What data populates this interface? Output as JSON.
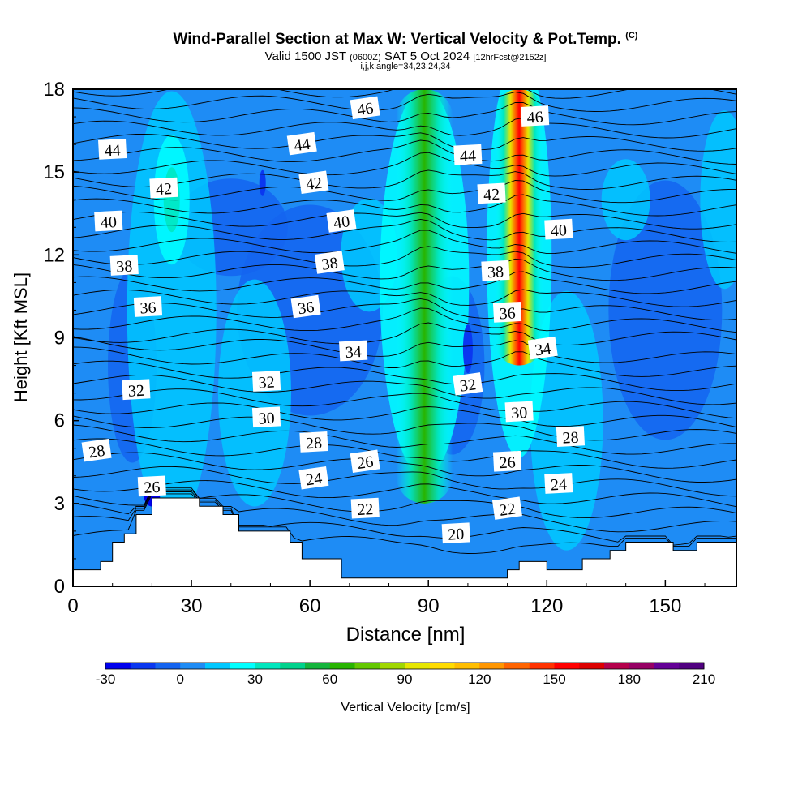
{
  "title": {
    "main": "Wind-Parallel Section at Max W: Vertical Velocity & Pot.Temp.",
    "suffix": "(C)"
  },
  "subtitle": {
    "valid": "Valid 1500 JST",
    "utc": "(0600Z)",
    "date": "SAT 5 Oct 2024",
    "fcst": "[12hrFcst@2152z]"
  },
  "subsubtitle": "i,j,k,angle=34,23,24,34",
  "colorbar": {
    "label": "Vertical Velocity [cm/s]",
    "ticks": [
      "-30",
      "0",
      "30",
      "60",
      "90",
      "120",
      "150",
      "180",
      "210"
    ],
    "colors": [
      "#0000ee",
      "#0a37f0",
      "#1464f0",
      "#1e8cf5",
      "#00c8ff",
      "#00ffff",
      "#00e6be",
      "#00d28c",
      "#14b43c",
      "#28b400",
      "#64c800",
      "#a0d700",
      "#e6e600",
      "#ffdc00",
      "#ffbe00",
      "#ff9600",
      "#ff6400",
      "#ff3200",
      "#ff0000",
      "#dc0000",
      "#b4004b",
      "#960064",
      "#640096",
      "#500080"
    ]
  },
  "chart_data": {
    "type": "heatmap",
    "xlabel": "Distance [nm]",
    "ylabel": "Height [Kft MSL]",
    "xlim": [
      0,
      168
    ],
    "ylim": [
      0,
      18
    ],
    "xticks": [
      "0",
      "30",
      "60",
      "90",
      "120",
      "150"
    ],
    "yticks": [
      "0",
      "3",
      "6",
      "9",
      "12",
      "15",
      "18"
    ],
    "updrafts": [
      {
        "x": 89,
        "y_from": 3,
        "y_to": 18,
        "peak_w": 75
      },
      {
        "x": 113,
        "y_from": 8,
        "y_to": 18,
        "peak_w": 170
      }
    ],
    "terrain": [
      [
        0,
        0.6
      ],
      [
        7,
        0.6
      ],
      [
        7,
        0.9
      ],
      [
        10,
        0.9
      ],
      [
        10,
        1.6
      ],
      [
        13,
        1.6
      ],
      [
        13,
        1.9
      ],
      [
        16,
        1.9
      ],
      [
        16,
        2.6
      ],
      [
        20,
        2.6
      ],
      [
        20,
        3.2
      ],
      [
        32,
        3.2
      ],
      [
        32,
        2.9
      ],
      [
        38,
        2.9
      ],
      [
        38,
        2.6
      ],
      [
        42,
        2.6
      ],
      [
        42,
        2.0
      ],
      [
        55,
        2.0
      ],
      [
        55,
        1.6
      ],
      [
        58,
        1.6
      ],
      [
        58,
        1.0
      ],
      [
        68,
        1.0
      ],
      [
        68,
        0.3
      ],
      [
        110,
        0.3
      ],
      [
        110,
        0.6
      ],
      [
        113,
        0.6
      ],
      [
        113,
        0.9
      ],
      [
        120,
        0.9
      ],
      [
        120,
        0.6
      ],
      [
        129,
        0.6
      ],
      [
        129,
        1.0
      ],
      [
        136,
        1.0
      ],
      [
        136,
        1.3
      ],
      [
        140,
        1.3
      ],
      [
        140,
        1.6
      ],
      [
        152,
        1.6
      ],
      [
        152,
        1.3
      ],
      [
        158,
        1.3
      ],
      [
        158,
        1.6
      ],
      [
        168,
        1.6
      ]
    ],
    "contour_labels": [
      {
        "text": "46",
        "x": 74,
        "y": 17.3
      },
      {
        "text": "46",
        "x": 117,
        "y": 17.0
      },
      {
        "text": "44",
        "x": 10,
        "y": 15.8
      },
      {
        "text": "44",
        "x": 58,
        "y": 16.0
      },
      {
        "text": "44",
        "x": 100,
        "y": 15.6
      },
      {
        "text": "42",
        "x": 23,
        "y": 14.4
      },
      {
        "text": "42",
        "x": 61,
        "y": 14.6
      },
      {
        "text": "42",
        "x": 106,
        "y": 14.2
      },
      {
        "text": "40",
        "x": 9,
        "y": 13.2
      },
      {
        "text": "40",
        "x": 68,
        "y": 13.2
      },
      {
        "text": "40",
        "x": 123,
        "y": 12.9
      },
      {
        "text": "38",
        "x": 13,
        "y": 11.6
      },
      {
        "text": "38",
        "x": 65,
        "y": 11.7
      },
      {
        "text": "38",
        "x": 107,
        "y": 11.4
      },
      {
        "text": "36",
        "x": 19,
        "y": 10.1
      },
      {
        "text": "36",
        "x": 59,
        "y": 10.1
      },
      {
        "text": "36",
        "x": 110,
        "y": 9.9
      },
      {
        "text": "34",
        "x": 71,
        "y": 8.5
      },
      {
        "text": "34",
        "x": 119,
        "y": 8.6
      },
      {
        "text": "32",
        "x": 16,
        "y": 7.1
      },
      {
        "text": "32",
        "x": 49,
        "y": 7.4
      },
      {
        "text": "32",
        "x": 100,
        "y": 7.3
      },
      {
        "text": "30",
        "x": 49,
        "y": 6.1
      },
      {
        "text": "30",
        "x": 113,
        "y": 6.3
      },
      {
        "text": "28",
        "x": 6,
        "y": 4.9
      },
      {
        "text": "28",
        "x": 61,
        "y": 5.2
      },
      {
        "text": "28",
        "x": 126,
        "y": 5.4
      },
      {
        "text": "26",
        "x": 74,
        "y": 4.5
      },
      {
        "text": "26",
        "x": 110,
        "y": 4.5
      },
      {
        "text": "26",
        "x": 20,
        "y": 3.6
      },
      {
        "text": "24",
        "x": 61,
        "y": 3.9
      },
      {
        "text": "24",
        "x": 123,
        "y": 3.7
      },
      {
        "text": "22",
        "x": 74,
        "y": 2.8
      },
      {
        "text": "22",
        "x": 110,
        "y": 2.8
      },
      {
        "text": "20",
        "x": 97,
        "y": 1.9
      }
    ]
  }
}
